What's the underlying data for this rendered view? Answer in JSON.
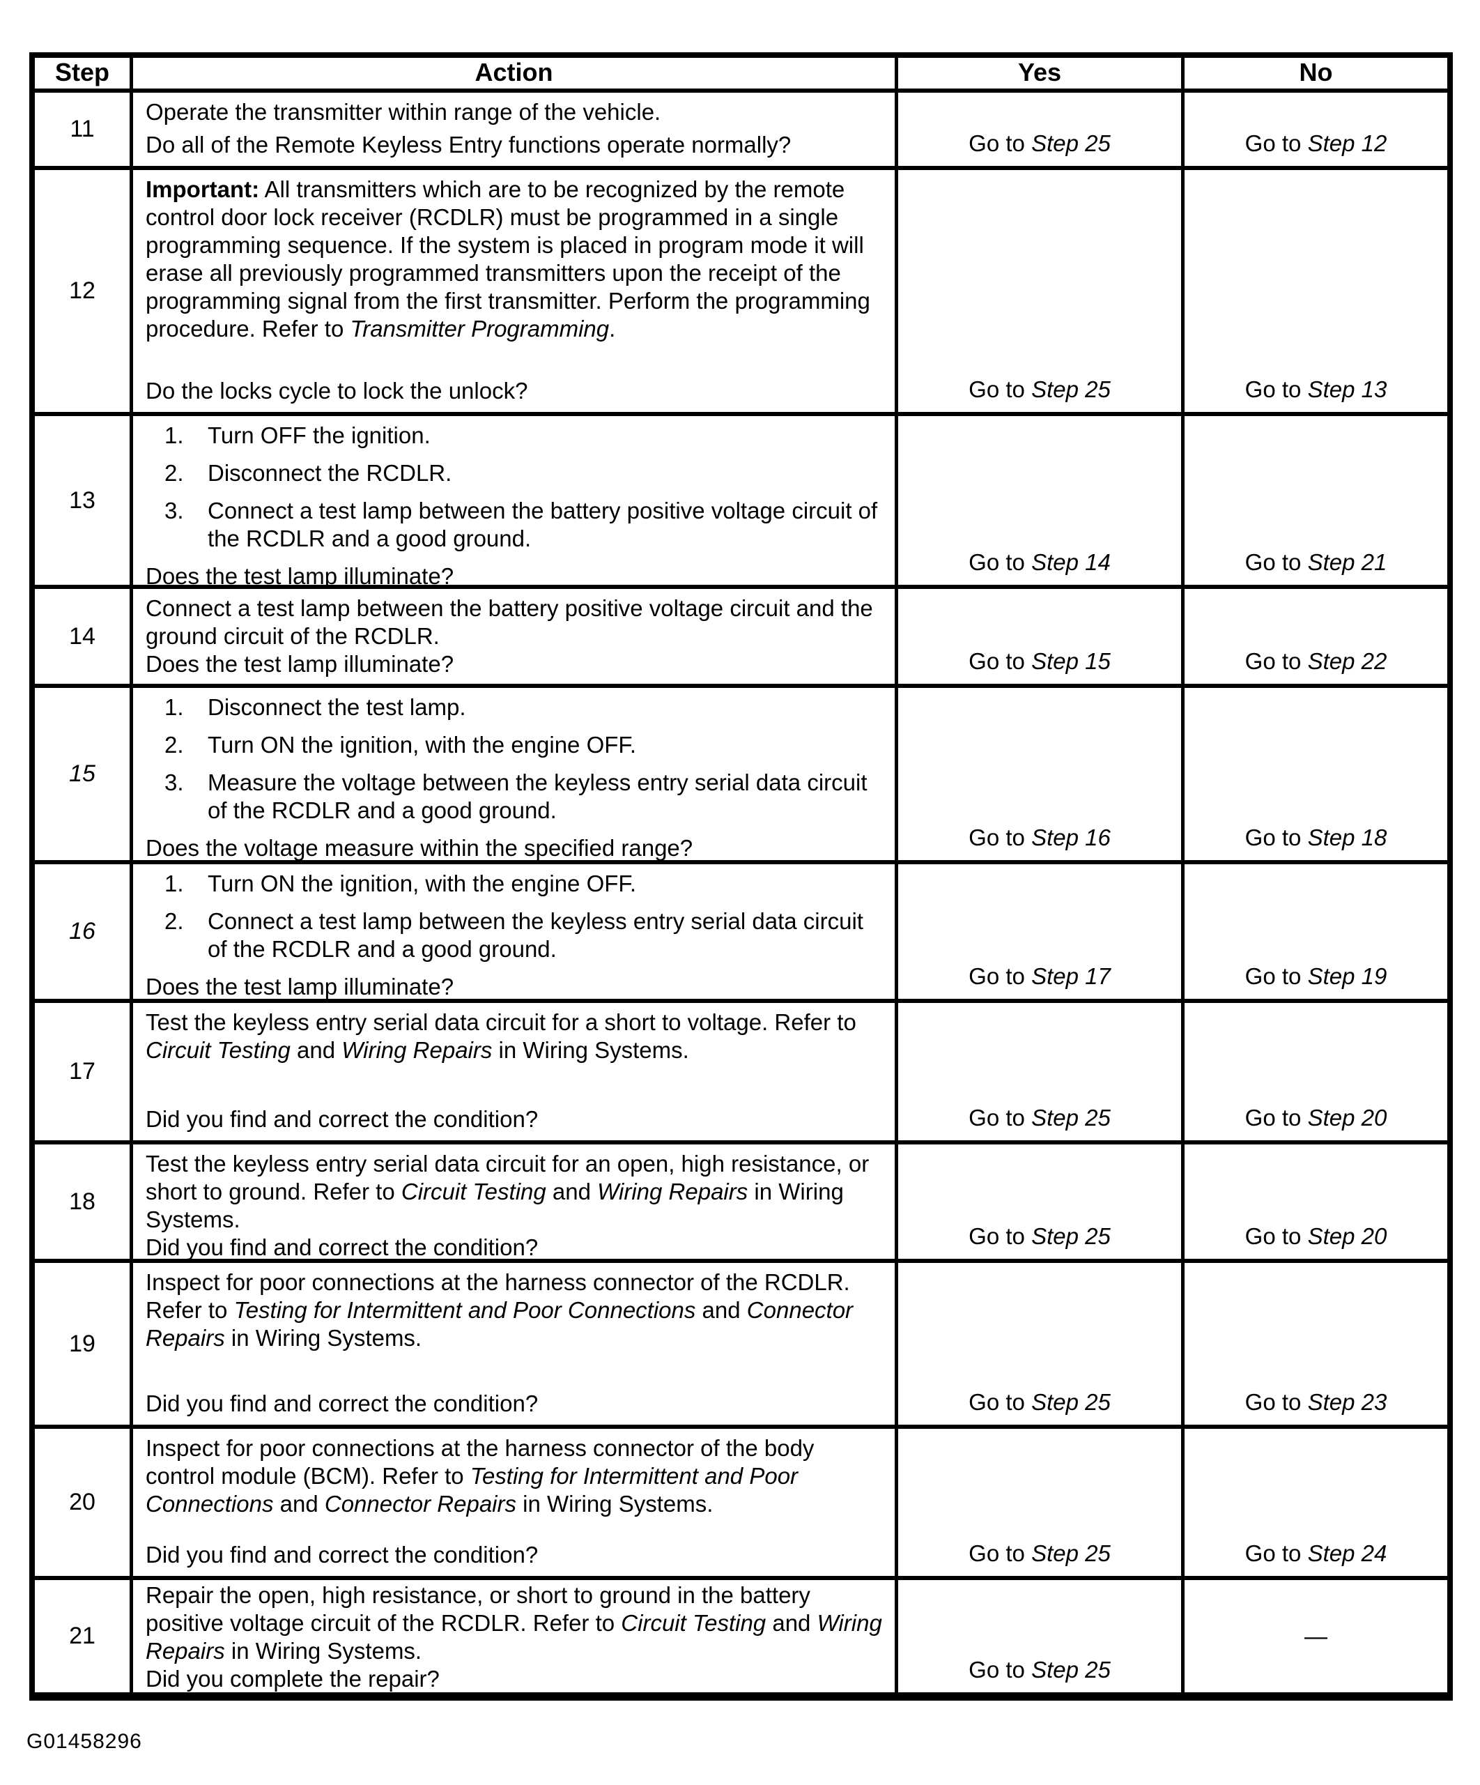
{
  "figure_label": "G01458296",
  "table": {
    "headers": {
      "step": "Step",
      "action": "Action",
      "yes": "Yes",
      "no": "No"
    },
    "rows": [
      {
        "step": "11",
        "step_italic": false,
        "body": [
          {
            "type": "p",
            "segs": [
              {
                "t": "Operate the transmitter within range of the vehicle."
              }
            ]
          }
        ],
        "question": "Do all of the Remote Keyless Entry functions operate normally?",
        "yes": [
          {
            "t": "Go to "
          },
          {
            "t": "Step 25",
            "i": true
          }
        ],
        "no": [
          {
            "t": "Go to "
          },
          {
            "t": "Step 12",
            "i": true
          }
        ]
      },
      {
        "step": "12",
        "step_italic": false,
        "body": [
          {
            "type": "p",
            "segs": [
              {
                "t": "Important:",
                "b": true
              },
              {
                "t": " All transmitters which are to be recognized by the remote control door lock receiver (RCDLR) must be programmed in a single programming sequence. If the system is placed in program mode it will erase all previously programmed transmitters upon the receipt of the programming signal from the first transmitter. Perform the programming procedure. Refer to "
              },
              {
                "t": "Transmitter Programming",
                "i": true
              },
              {
                "t": "."
              }
            ]
          }
        ],
        "question": "Do the locks cycle to lock the unlock?",
        "yes": [
          {
            "t": "Go to "
          },
          {
            "t": "Step 25",
            "i": true
          }
        ],
        "no": [
          {
            "t": "Go to "
          },
          {
            "t": "Step 13",
            "i": true
          }
        ]
      },
      {
        "step": "13",
        "step_italic": false,
        "body": [
          {
            "type": "list",
            "items": [
              [
                {
                  "t": "Turn OFF the ignition."
                }
              ],
              [
                {
                  "t": "Disconnect the RCDLR."
                }
              ],
              [
                {
                  "t": "Connect a test lamp between the battery positive voltage circuit of the RCDLR and a good ground."
                }
              ]
            ]
          }
        ],
        "question": "Does the test lamp illuminate?",
        "yes": [
          {
            "t": "Go to "
          },
          {
            "t": "Step 14",
            "i": true
          }
        ],
        "no": [
          {
            "t": "Go to "
          },
          {
            "t": "Step 21",
            "i": true
          }
        ]
      },
      {
        "step": "14",
        "step_italic": false,
        "body": [
          {
            "type": "p",
            "segs": [
              {
                "t": "Connect a test lamp between the battery positive voltage circuit and the ground circuit of the RCDLR."
              }
            ]
          }
        ],
        "question": "Does the test lamp illuminate?",
        "yes": [
          {
            "t": "Go to "
          },
          {
            "t": "Step 15",
            "i": true
          }
        ],
        "no": [
          {
            "t": "Go to "
          },
          {
            "t": "Step 22",
            "i": true
          }
        ]
      },
      {
        "step": "15",
        "step_italic": true,
        "body": [
          {
            "type": "list",
            "items": [
              [
                {
                  "t": "Disconnect the test lamp."
                }
              ],
              [
                {
                  "t": "Turn ON the ignition, with the engine OFF."
                }
              ],
              [
                {
                  "t": "Measure the voltage between the keyless entry serial data circuit of the RCDLR and a good ground."
                }
              ]
            ]
          }
        ],
        "question": "Does the voltage measure within the specified range?",
        "yes": [
          {
            "t": "Go to "
          },
          {
            "t": "Step 16",
            "i": true
          }
        ],
        "no": [
          {
            "t": "Go to "
          },
          {
            "t": "Step 18",
            "i": true
          }
        ]
      },
      {
        "step": "16",
        "step_italic": true,
        "body": [
          {
            "type": "list",
            "items": [
              [
                {
                  "t": "Turn ON the ignition, with the engine OFF."
                }
              ],
              [
                {
                  "t": "Connect a test lamp between the keyless entry serial data circuit of the RCDLR and a good ground."
                }
              ]
            ]
          }
        ],
        "question": "Does the test lamp illuminate?",
        "yes": [
          {
            "t": "Go to "
          },
          {
            "t": "Step 17",
            "i": true
          }
        ],
        "no": [
          {
            "t": "Go to "
          },
          {
            "t": "Step 19",
            "i": true
          }
        ]
      },
      {
        "step": "17",
        "step_italic": false,
        "body": [
          {
            "type": "p",
            "segs": [
              {
                "t": "Test the keyless entry serial data circuit for a short to voltage. Refer to "
              },
              {
                "t": "Circuit Testing",
                "i": true
              },
              {
                "t": " and "
              },
              {
                "t": "Wiring Repairs",
                "i": true
              },
              {
                "t": " in Wiring Systems."
              }
            ]
          }
        ],
        "question": "Did you find and correct the condition?",
        "yes": [
          {
            "t": "Go to "
          },
          {
            "t": "Step 25",
            "i": true
          }
        ],
        "no": [
          {
            "t": "Go to "
          },
          {
            "t": "Step 20",
            "i": true
          }
        ]
      },
      {
        "step": "18",
        "step_italic": false,
        "body": [
          {
            "type": "p",
            "segs": [
              {
                "t": "Test the keyless entry serial data circuit for an open, high resistance, or short to ground. Refer to "
              },
              {
                "t": "Circuit Testing",
                "i": true
              },
              {
                "t": " and "
              },
              {
                "t": "Wiring Repairs",
                "i": true
              },
              {
                "t": " in Wiring Systems."
              }
            ]
          }
        ],
        "question": "Did you find and correct the condition?",
        "yes": [
          {
            "t": "Go to "
          },
          {
            "t": "Step 25",
            "i": true
          }
        ],
        "no": [
          {
            "t": "Go to "
          },
          {
            "t": "Step 20",
            "i": true
          }
        ]
      },
      {
        "step": "19",
        "step_italic": false,
        "body": [
          {
            "type": "p",
            "segs": [
              {
                "t": "Inspect for poor connections at the harness connector of the RCDLR. Refer to "
              },
              {
                "t": "Testing for Intermittent and Poor Connections",
                "i": true
              },
              {
                "t": " and "
              },
              {
                "t": "Connector Repairs",
                "i": true
              },
              {
                "t": " in Wiring Systems."
              }
            ]
          }
        ],
        "question": "Did you find and correct the condition?",
        "yes": [
          {
            "t": "Go to "
          },
          {
            "t": "Step 25",
            "i": true
          }
        ],
        "no": [
          {
            "t": "Go to "
          },
          {
            "t": "Step 23",
            "i": true
          }
        ]
      },
      {
        "step": "20",
        "step_italic": false,
        "body": [
          {
            "type": "p",
            "segs": [
              {
                "t": "Inspect for poor connections at the harness connector of the body control module (BCM). Refer to "
              },
              {
                "t": "Testing for Intermittent and Poor Connections",
                "i": true
              },
              {
                "t": " and "
              },
              {
                "t": "Connector Repairs",
                "i": true
              },
              {
                "t": " in Wiring Systems."
              }
            ]
          }
        ],
        "question": "Did you find and correct the condition?",
        "yes": [
          {
            "t": "Go to "
          },
          {
            "t": "Step 25",
            "i": true
          }
        ],
        "no": [
          {
            "t": "Go to "
          },
          {
            "t": "Step 24",
            "i": true
          }
        ]
      },
      {
        "step": "21",
        "step_italic": false,
        "tight": true,
        "no_dash": true,
        "body": [
          {
            "type": "p",
            "segs": [
              {
                "t": "Repair the open, high resistance, or short to ground in the battery positive voltage circuit of the RCDLR. Refer to "
              },
              {
                "t": "Circuit Testing",
                "i": true
              },
              {
                "t": " and "
              },
              {
                "t": "Wiring Repairs",
                "i": true
              },
              {
                "t": " in Wiring Systems."
              }
            ]
          }
        ],
        "question": "Did you complete the repair?",
        "yes": [
          {
            "t": "Go to "
          },
          {
            "t": "Step 25",
            "i": true
          }
        ],
        "no": [
          {
            "t": "—"
          }
        ]
      }
    ]
  }
}
